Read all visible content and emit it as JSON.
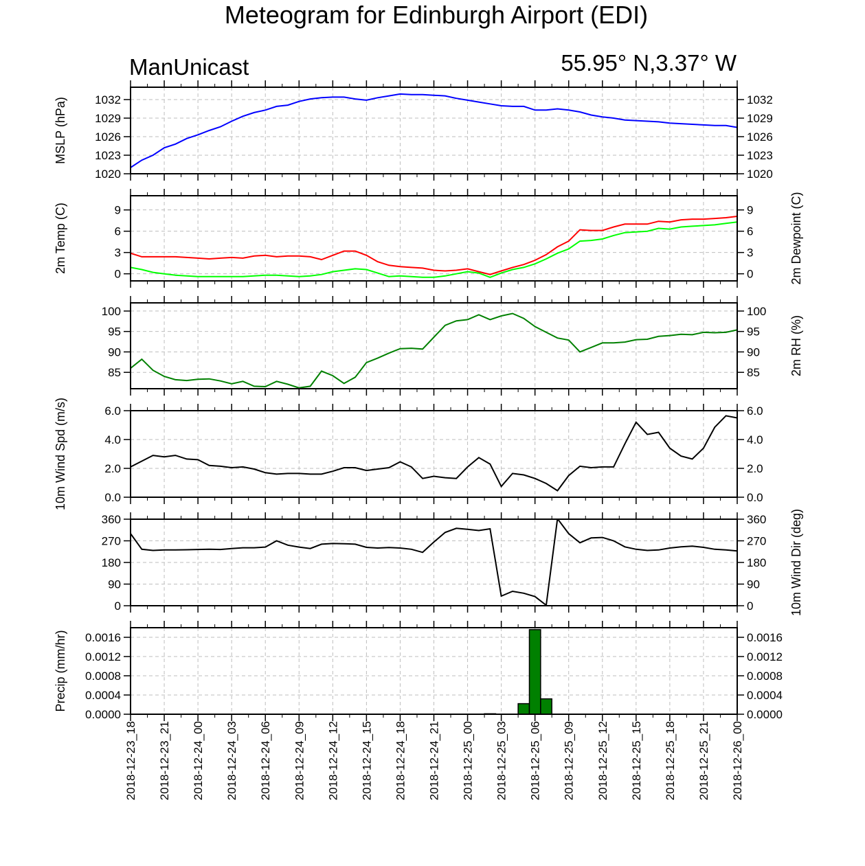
{
  "title": "Meteogram for Edinburgh Airport (EDI)",
  "left_label": "ManUnicast",
  "right_label": "55.95° N,3.37° W",
  "time_tick_labels": [
    "2018-12-23_18",
    "2018-12-23_21",
    "2018-12-24_00",
    "2018-12-24_03",
    "2018-12-24_06",
    "2018-12-24_09",
    "2018-12-24_12",
    "2018-12-24_15",
    "2018-12-24_18",
    "2018-12-24_21",
    "2018-12-25_00",
    "2018-12-25_03",
    "2018-12-25_06",
    "2018-12-25_09",
    "2018-12-25_12",
    "2018-12-25_15",
    "2018-12-25_18",
    "2018-12-25_21",
    "2018-12-26_00"
  ],
  "chart_data": [
    {
      "type": "line",
      "ylabel": "MSLP (hPa)",
      "ylim": [
        1020,
        1034
      ],
      "yticks": [
        "1020",
        "1023",
        "1026",
        "1029",
        "1032"
      ],
      "right_yticks": [
        "1020",
        "1023",
        "1026",
        "1029",
        "1032"
      ],
      "grid": true,
      "series": [
        {
          "color": "#0000ff",
          "x_hours": [
            0,
            1,
            2,
            3,
            4,
            5,
            6,
            7,
            8,
            9,
            10,
            11,
            12,
            13,
            14,
            15,
            16,
            17,
            18,
            19,
            20,
            21,
            22,
            23,
            24,
            25,
            26,
            27,
            28,
            29,
            30,
            31,
            32,
            33,
            34,
            35,
            36,
            37,
            38,
            39,
            40,
            41,
            42,
            43,
            44,
            45,
            46,
            47,
            48,
            49,
            50,
            51,
            52,
            53,
            54
          ],
          "values": [
            1021.0,
            1022.2,
            1023.0,
            1024.2,
            1024.8,
            1025.7,
            1026.3,
            1027.0,
            1027.6,
            1028.5,
            1029.3,
            1029.9,
            1030.3,
            1030.9,
            1031.1,
            1031.7,
            1032.1,
            1032.3,
            1032.4,
            1032.4,
            1032.1,
            1031.9,
            1032.3,
            1032.6,
            1032.9,
            1032.8,
            1032.8,
            1032.7,
            1032.6,
            1032.2,
            1031.9,
            1031.6,
            1031.3,
            1031.0,
            1030.9,
            1030.9,
            1030.3,
            1030.3,
            1030.5,
            1030.3,
            1030.0,
            1029.5,
            1029.2,
            1029.0,
            1028.7,
            1028.6,
            1028.5,
            1028.4,
            1028.2,
            1028.1,
            1028.0,
            1027.9,
            1027.8,
            1027.8,
            1027.5
          ]
        }
      ]
    },
    {
      "type": "line",
      "ylabel": "2m Temp (C)",
      "right_ylabel": "2m Dewpoint (C)",
      "ylim": [
        -1,
        11
      ],
      "yticks": [
        "0",
        "3",
        "6",
        "9"
      ],
      "right_yticks": [
        "0",
        "3",
        "6",
        "9"
      ],
      "grid": true,
      "series": [
        {
          "color": "#ff0000",
          "x_hours": [
            0,
            1,
            2,
            3,
            4,
            5,
            6,
            7,
            8,
            9,
            10,
            11,
            12,
            13,
            14,
            15,
            16,
            17,
            18,
            19,
            20,
            21,
            22,
            23,
            24,
            25,
            26,
            27,
            28,
            29,
            30,
            31,
            32,
            33,
            34,
            35,
            36,
            37,
            38,
            39,
            40,
            41,
            42,
            43,
            44,
            45,
            46,
            47,
            48,
            49,
            50,
            51,
            52,
            53,
            54
          ],
          "values": [
            2.9,
            2.4,
            2.4,
            2.4,
            2.4,
            2.3,
            2.2,
            2.1,
            2.2,
            2.3,
            2.2,
            2.5,
            2.6,
            2.4,
            2.5,
            2.5,
            2.4,
            2.0,
            2.6,
            3.2,
            3.2,
            2.6,
            1.7,
            1.2,
            1.0,
            0.9,
            0.8,
            0.5,
            0.4,
            0.5,
            0.7,
            0.3,
            -0.1,
            0.4,
            0.9,
            1.3,
            1.9,
            2.7,
            3.8,
            4.6,
            6.2,
            6.1,
            6.1,
            6.6,
            7.0,
            7.0,
            7.0,
            7.4,
            7.3,
            7.6,
            7.7,
            7.7,
            7.8,
            7.9,
            8.1
          ]
        },
        {
          "color": "#00ff00",
          "x_hours": [
            0,
            1,
            2,
            3,
            4,
            5,
            6,
            7,
            8,
            9,
            10,
            11,
            12,
            13,
            14,
            15,
            16,
            17,
            18,
            19,
            20,
            21,
            22,
            23,
            24,
            25,
            26,
            27,
            28,
            29,
            30,
            31,
            32,
            33,
            34,
            35,
            36,
            37,
            38,
            39,
            40,
            41,
            42,
            43,
            44,
            45,
            46,
            47,
            48,
            49,
            50,
            51,
            52,
            53,
            54
          ],
          "values": [
            0.9,
            0.6,
            0.2,
            0.0,
            -0.2,
            -0.3,
            -0.4,
            -0.4,
            -0.4,
            -0.4,
            -0.4,
            -0.3,
            -0.2,
            -0.2,
            -0.3,
            -0.4,
            -0.3,
            -0.1,
            0.3,
            0.5,
            0.7,
            0.6,
            0.1,
            -0.4,
            -0.3,
            -0.4,
            -0.5,
            -0.5,
            -0.3,
            0.0,
            0.3,
            0.1,
            -0.5,
            0.1,
            0.6,
            0.9,
            1.4,
            2.1,
            2.9,
            3.5,
            4.6,
            4.7,
            4.9,
            5.4,
            5.8,
            5.9,
            6.0,
            6.4,
            6.3,
            6.6,
            6.7,
            6.8,
            6.9,
            7.1,
            7.3
          ]
        }
      ]
    },
    {
      "type": "line",
      "right_ylabel": "2m RH (%)",
      "ylim": [
        81,
        102
      ],
      "yticks": [
        "85",
        "90",
        "95",
        "100"
      ],
      "right_yticks": [
        "85",
        "90",
        "95",
        "100"
      ],
      "grid": true,
      "series": [
        {
          "color": "#008000",
          "x_hours": [
            0,
            1,
            2,
            3,
            4,
            5,
            6,
            7,
            8,
            9,
            10,
            11,
            12,
            13,
            14,
            15,
            16,
            17,
            18,
            19,
            20,
            21,
            22,
            23,
            24,
            25,
            26,
            27,
            28,
            29,
            30,
            31,
            32,
            33,
            34,
            35,
            36,
            37,
            38,
            39,
            40,
            41,
            42,
            43,
            44,
            45,
            46,
            47,
            48,
            49,
            50,
            51,
            52,
            53,
            54
          ],
          "values": [
            86.0,
            88.2,
            85.5,
            84.0,
            83.2,
            83.0,
            83.3,
            83.4,
            82.9,
            82.2,
            82.8,
            81.6,
            81.5,
            82.8,
            82.1,
            81.2,
            81.6,
            85.3,
            84.2,
            82.3,
            83.8,
            87.4,
            88.5,
            89.7,
            90.8,
            90.9,
            90.7,
            93.6,
            96.5,
            97.6,
            97.9,
            99.1,
            97.9,
            98.8,
            99.4,
            98.2,
            96.2,
            94.8,
            93.4,
            92.9,
            90.0,
            91.1,
            92.2,
            92.2,
            92.4,
            93.0,
            93.1,
            93.8,
            94.0,
            94.3,
            94.2,
            94.8,
            94.7,
            94.8,
            95.4
          ]
        }
      ]
    },
    {
      "type": "line",
      "ylabel": "10m Wind Spd (m/s)",
      "ylim": [
        0,
        6
      ],
      "yticks": [
        "0.0",
        "2.0",
        "4.0",
        "6.0"
      ],
      "right_yticks": [
        "0.0",
        "2.0",
        "4.0",
        "6.0"
      ],
      "grid": true,
      "series": [
        {
          "color": "#000000",
          "x_hours": [
            0,
            2,
            3,
            4,
            5,
            6,
            7,
            8,
            9,
            10,
            11,
            12,
            13,
            14,
            15,
            16,
            17,
            18,
            19,
            20,
            21,
            22,
            23,
            24,
            25,
            26,
            27,
            28,
            29,
            30,
            31,
            32,
            33,
            34,
            35,
            36,
            37,
            38,
            39,
            40,
            41,
            42,
            43,
            44,
            45,
            46,
            47,
            48,
            49,
            50,
            51,
            52,
            53,
            54
          ],
          "values": [
            2.1,
            2.9,
            2.8,
            2.9,
            2.65,
            2.6,
            2.2,
            2.15,
            2.05,
            2.1,
            1.95,
            1.7,
            1.6,
            1.65,
            1.65,
            1.6,
            1.6,
            1.8,
            2.05,
            2.05,
            1.85,
            1.95,
            2.05,
            2.45,
            2.1,
            1.3,
            1.45,
            1.35,
            1.3,
            2.1,
            2.75,
            2.3,
            0.75,
            1.65,
            1.55,
            1.3,
            0.95,
            0.45,
            1.5,
            2.15,
            2.05,
            2.1,
            2.1,
            3.7,
            5.2,
            4.35,
            4.5,
            3.4,
            2.85,
            2.65,
            3.4,
            4.85,
            5.65,
            5.5
          ]
        }
      ]
    },
    {
      "type": "line",
      "right_ylabel": "10m Wind Dir (deg)",
      "ylim": [
        0,
        360
      ],
      "yticks": [
        "0",
        "90",
        "180",
        "270",
        "360"
      ],
      "right_yticks": [
        "0",
        "90",
        "180",
        "270",
        "360"
      ],
      "grid": true,
      "series": [
        {
          "color": "#000000",
          "x_hours": [
            0,
            1,
            2,
            3,
            4,
            5,
            6,
            7,
            8,
            9,
            10,
            11,
            12,
            13,
            14,
            15,
            16,
            17,
            18,
            19,
            20,
            21,
            22,
            23,
            24,
            25,
            26,
            27,
            28,
            29,
            30,
            31,
            32,
            33,
            34,
            35,
            36,
            37,
            38,
            39,
            40,
            41,
            42,
            43,
            44,
            45,
            46,
            47,
            48,
            49,
            50,
            51,
            52,
            53,
            54
          ],
          "values": [
            300,
            235,
            230,
            232,
            232,
            233,
            234,
            235,
            234,
            238,
            241,
            241,
            244,
            270,
            252,
            244,
            238,
            256,
            259,
            258,
            256,
            243,
            240,
            242,
            240,
            235,
            222,
            265,
            305,
            322,
            318,
            313,
            320,
            40,
            60,
            52,
            38,
            2,
            362,
            300,
            262,
            282,
            284,
            270,
            245,
            235,
            230,
            232,
            240,
            245,
            248,
            243,
            235,
            232,
            228
          ]
        }
      ]
    },
    {
      "type": "bar",
      "ylabel": "Precip (mm/hr)",
      "ylim": [
        0,
        0.0018
      ],
      "yticks": [
        "0.0000",
        "0.0004",
        "0.0008",
        "0.0012",
        "0.0016"
      ],
      "right_yticks": [
        "0.0000",
        "0.0004",
        "0.0008",
        "0.0012",
        "0.0016"
      ],
      "grid": true,
      "series": [
        {
          "color": "#008000",
          "x_hours": [
            32,
            35,
            36,
            37
          ],
          "values": [
            1e-05,
            0.00022,
            0.00176,
            0.00032
          ]
        }
      ]
    }
  ]
}
